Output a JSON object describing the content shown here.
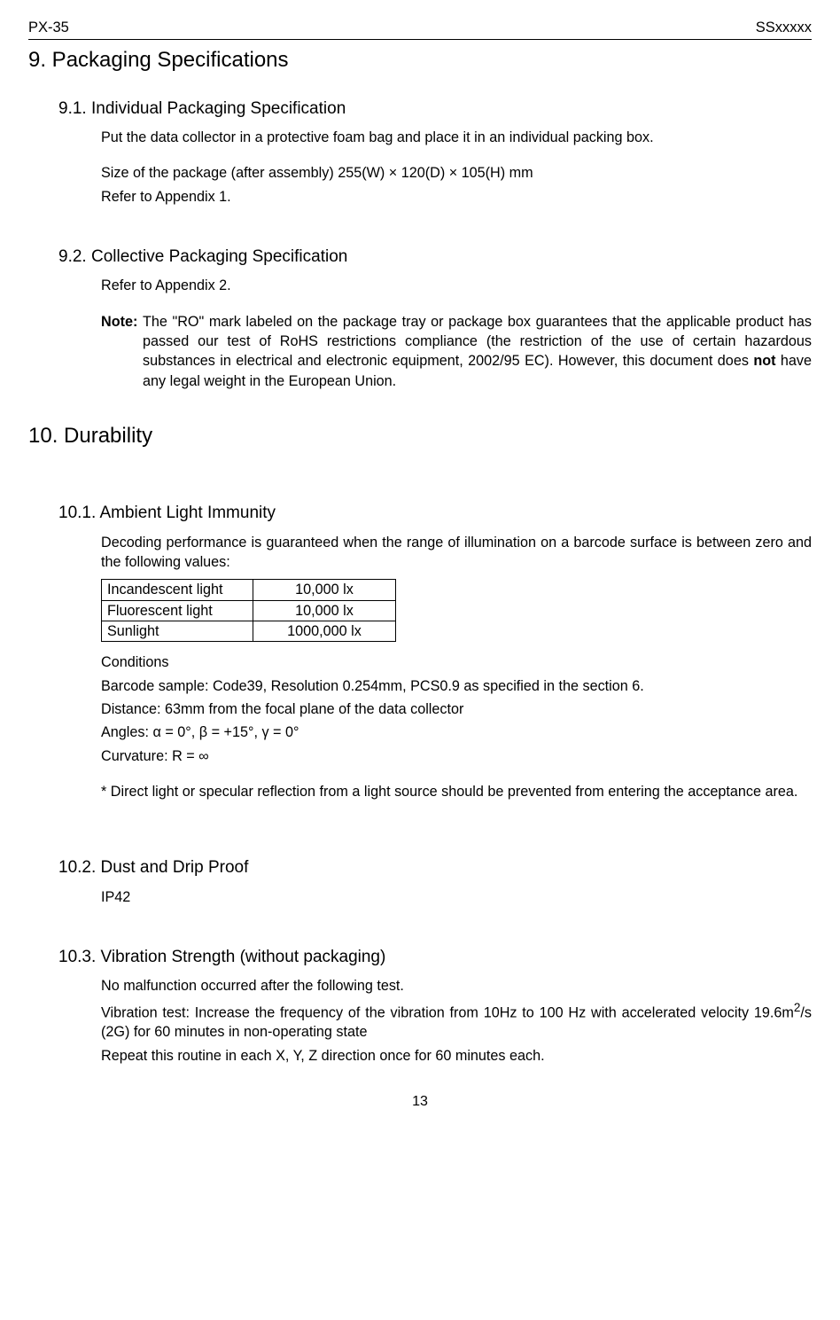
{
  "header": {
    "left": "PX-35",
    "right": "SSxxxxx"
  },
  "s9": {
    "title": "9. Packaging Specifications",
    "s91": {
      "title": "9.1. Individual Packaging Specification",
      "p1": "Put the data collector in a protective foam bag and place it in an individual packing box.",
      "p2": "Size of the package (after assembly) 255(W) × 120(D) × 105(H) mm",
      "p3": "Refer to Appendix 1."
    },
    "s92": {
      "title": "9.2. Collective Packaging Specification",
      "p1": "Refer to Appendix 2.",
      "noteLabel": "Note:",
      "noteBody": "The \"RO\" mark labeled on the package tray or package box guarantees that the applicable product has passed our test of RoHS restrictions compliance (the restriction of the use of certain hazardous substances in electrical and electronic equipment, 2002/95 EC). However, this document does ",
      "noteNot": "not",
      "noteTail": " have any legal weight in the European Union."
    }
  },
  "s10": {
    "title": "10. Durability",
    "s101": {
      "title": "10.1. Ambient Light Immunity",
      "p1": "Decoding performance is guaranteed when the range of illumination on a barcode surface is between zero and the following values:",
      "table": {
        "rows": [
          [
            "Incandescent light",
            "10,000 lx"
          ],
          [
            "Fluorescent light",
            "10,000 lx"
          ],
          [
            "Sunlight",
            "1000,000 lx"
          ]
        ]
      },
      "cond0": "Conditions",
      "cond1": "Barcode sample: Code39, Resolution 0.254mm, PCS0.9 as specified in the section 6.",
      "cond2": "Distance: 63mm from the focal plane of the data collector",
      "cond3": "Angles:   α = 0°, β = +15°, γ = 0°",
      "cond4": "Curvature: R = ∞",
      "asterisk": "* Direct light or specular reflection from a light source should be prevented from entering the acceptance area."
    },
    "s102": {
      "title": "10.2. Dust and Drip Proof",
      "p1": "IP42"
    },
    "s103": {
      "title": "10.3. Vibration Strength (without packaging)",
      "p1": "No malfunction occurred after the following test.",
      "p2a": "Vibration test: Increase the frequency of the vibration from 10Hz to 100 Hz with accelerated velocity 19.6m",
      "p2sup": "2",
      "p2b": "/s (2G) for 60 minutes in non-operating state",
      "p3": "Repeat this routine in each X, Y, Z direction once for 60 minutes each."
    }
  },
  "pagenum": "13",
  "style": {
    "text_color": "#000000",
    "background_color": "#ffffff",
    "border_color": "#000000",
    "body_fontsize": 16.2,
    "h1_fontsize": 24,
    "h2_fontsize": 19,
    "font_family": "Arial"
  }
}
